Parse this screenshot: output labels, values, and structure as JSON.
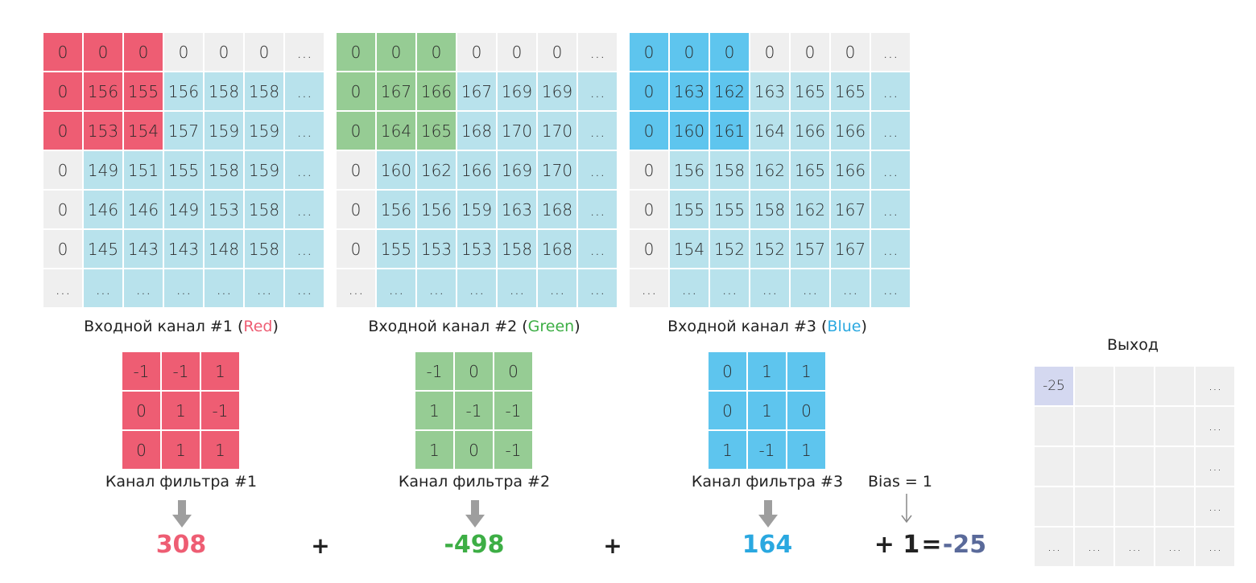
{
  "channels": [
    {
      "caption_prefix": "Входной канал #1 (",
      "caption_color_word": "Red",
      "caption_suffix": ")",
      "rows": [
        [
          "0",
          "0",
          "0",
          "0",
          "0",
          "0",
          "..."
        ],
        [
          "0",
          "156",
          "155",
          "156",
          "158",
          "158",
          "..."
        ],
        [
          "0",
          "153",
          "154",
          "157",
          "159",
          "159",
          "..."
        ],
        [
          "0",
          "149",
          "151",
          "155",
          "158",
          "159",
          "..."
        ],
        [
          "0",
          "146",
          "146",
          "149",
          "153",
          "158",
          "..."
        ],
        [
          "0",
          "145",
          "143",
          "143",
          "148",
          "158",
          "..."
        ],
        [
          "...",
          "...",
          "...",
          "...",
          "...",
          "...",
          "..."
        ]
      ]
    },
    {
      "caption_prefix": "Входной канал #2 (",
      "caption_color_word": "Green",
      "caption_suffix": ")",
      "rows": [
        [
          "0",
          "0",
          "0",
          "0",
          "0",
          "0",
          "..."
        ],
        [
          "0",
          "167",
          "166",
          "167",
          "169",
          "169",
          "..."
        ],
        [
          "0",
          "164",
          "165",
          "168",
          "170",
          "170",
          "..."
        ],
        [
          "0",
          "160",
          "162",
          "166",
          "169",
          "170",
          "..."
        ],
        [
          "0",
          "156",
          "156",
          "159",
          "163",
          "168",
          "..."
        ],
        [
          "0",
          "155",
          "153",
          "153",
          "158",
          "168",
          "..."
        ],
        [
          "...",
          "...",
          "...",
          "...",
          "...",
          "...",
          "..."
        ]
      ]
    },
    {
      "caption_prefix": "Входной канал #3 (",
      "caption_color_word": "Blue",
      "caption_suffix": ")",
      "rows": [
        [
          "0",
          "0",
          "0",
          "0",
          "0",
          "0",
          "..."
        ],
        [
          "0",
          "163",
          "162",
          "163",
          "165",
          "165",
          "..."
        ],
        [
          "0",
          "160",
          "161",
          "164",
          "166",
          "166",
          "..."
        ],
        [
          "0",
          "156",
          "158",
          "162",
          "165",
          "166",
          "..."
        ],
        [
          "0",
          "155",
          "155",
          "158",
          "162",
          "167",
          "..."
        ],
        [
          "0",
          "154",
          "152",
          "152",
          "157",
          "167",
          "..."
        ],
        [
          "...",
          "...",
          "...",
          "...",
          "...",
          "...",
          "..."
        ]
      ]
    }
  ],
  "filters": [
    {
      "caption": "Канал фильтра #1",
      "rows": [
        [
          "-1",
          "-1",
          "1"
        ],
        [
          "0",
          "1",
          "-1"
        ],
        [
          "0",
          "1",
          "1"
        ]
      ],
      "result": "308"
    },
    {
      "caption": "Канал фильтра #2",
      "rows": [
        [
          "-1",
          "0",
          "0"
        ],
        [
          "1",
          "-1",
          "-1"
        ],
        [
          "1",
          "0",
          "-1"
        ]
      ],
      "result": "-498"
    },
    {
      "caption": "Канал фильтра #3",
      "rows": [
        [
          "0",
          "1",
          "1"
        ],
        [
          "0",
          "1",
          "0"
        ],
        [
          "1",
          "-1",
          "1"
        ]
      ],
      "result": "164"
    }
  ],
  "bias": {
    "label": "Bias = 1",
    "term": "+ 1",
    "equals": "=",
    "total": "-25"
  },
  "plus_sign": "+",
  "output": {
    "title": "Выход",
    "rows": [
      [
        "-25",
        "",
        "",
        "",
        "..."
      ],
      [
        "",
        "",
        "",
        "",
        "..."
      ],
      [
        "",
        "",
        "",
        "",
        "..."
      ],
      [
        "",
        "",
        "",
        "",
        "..."
      ],
      [
        "...",
        "...",
        "...",
        "...",
        "..."
      ]
    ]
  },
  "colors": {
    "red": "#ee5d73",
    "green": "#96cc94",
    "green_text": "#3dae45",
    "blue": "#5ec5ee",
    "blue_text": "#2aa8e0",
    "cyan": "#b8e2ec",
    "gray": "#efefef",
    "output_highlight": "#d4d8f0",
    "total_text": "#5a6a9a"
  }
}
